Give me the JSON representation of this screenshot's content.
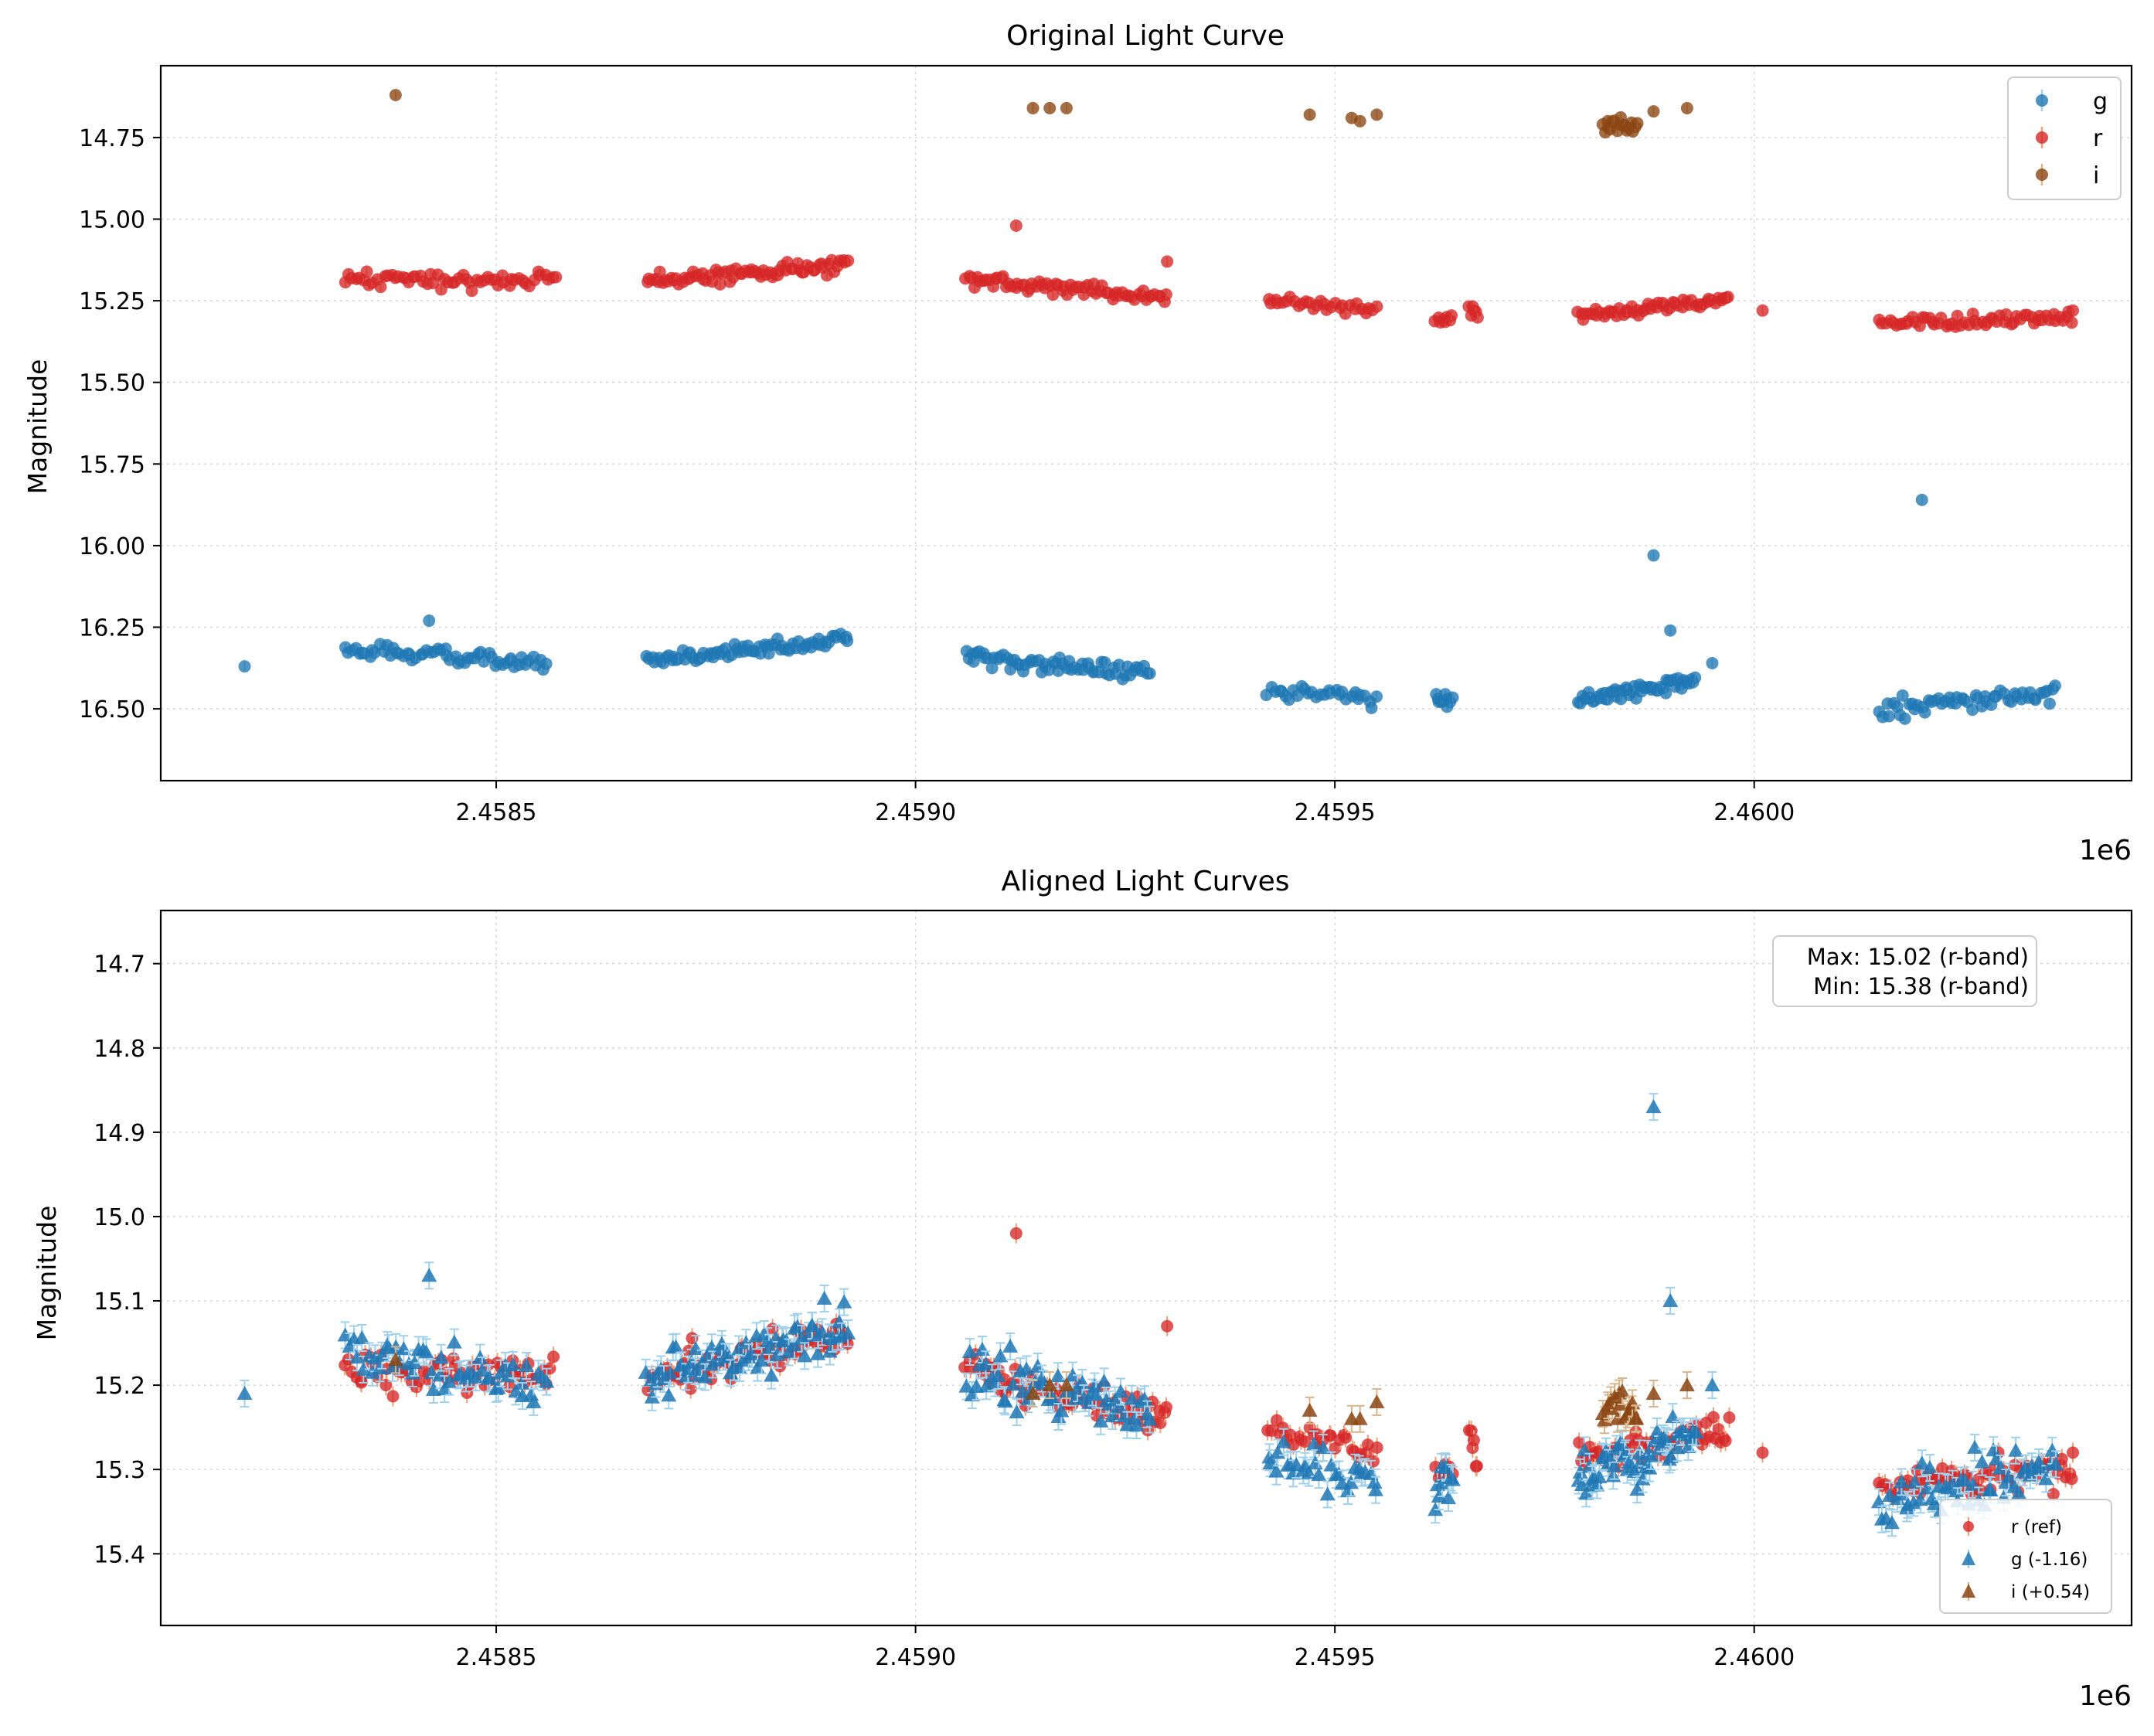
{
  "colors": {
    "g": "#1f77b4",
    "g_err": "#9fd0ec",
    "r": "#d62728",
    "r_err": "#f0a07a",
    "i": "#8b4513",
    "i_err": "#d8b58c",
    "grid": "#d9d9d9"
  },
  "chart_data": [
    {
      "type": "scatter",
      "title": "Original Light Curve",
      "xlabel": "",
      "ylabel": "Magnitude",
      "x_offset_label": "1e6",
      "xlim": [
        2.4581,
        2.46045
      ],
      "ylim": [
        16.72,
        14.53
      ],
      "y_inverted": true,
      "grid": true,
      "x_ticks": [
        2.4585,
        2.459,
        2.4595,
        2.46
      ],
      "x_tick_labels": [
        "2.4585",
        "2.4590",
        "2.4595",
        "2.4600"
      ],
      "y_ticks": [
        14.75,
        15.0,
        15.25,
        15.5,
        15.75,
        16.0,
        16.25,
        16.5
      ],
      "y_tick_labels": [
        "14.75",
        "15.00",
        "15.25",
        "15.50",
        "15.75",
        "16.00",
        "16.25",
        "16.50"
      ],
      "legend": {
        "placement": "top-right",
        "entries": [
          "g",
          "r",
          "i"
        ]
      },
      "series": [
        {
          "name": "r",
          "marker": "circle",
          "segments": [
            {
              "x0": 2.45832,
              "x1": 2.45857,
              "m0": 15.18,
              "m1": 15.19,
              "spread": 0.05,
              "n": 60
            },
            {
              "x0": 2.45868,
              "x1": 2.45892,
              "m0": 15.19,
              "m1": 15.14,
              "spread": 0.05,
              "n": 75
            },
            {
              "x0": 2.45906,
              "x1": 2.4593,
              "m0": 15.18,
              "m1": 15.24,
              "spread": 0.05,
              "n": 70
            },
            {
              "x0": 2.45942,
              "x1": 2.45955,
              "m0": 15.25,
              "m1": 15.28,
              "spread": 0.04,
              "n": 30
            },
            {
              "x0": 2.45962,
              "x1": 2.45964,
              "m0": 15.3,
              "m1": 15.3,
              "spread": 0.04,
              "n": 8
            },
            {
              "x0": 2.45966,
              "x1": 2.45967,
              "m0": 15.27,
              "m1": 15.29,
              "spread": 0.05,
              "n": 6
            },
            {
              "x0": 2.45979,
              "x1": 2.45997,
              "m0": 15.29,
              "m1": 15.25,
              "spread": 0.04,
              "n": 55
            },
            {
              "x0": 2.46015,
              "x1": 2.46038,
              "m0": 15.32,
              "m1": 15.3,
              "spread": 0.05,
              "n": 60
            }
          ],
          "points": [
            {
              "x": 2.45912,
              "y": 15.02
            },
            {
              "x": 2.4593,
              "y": 15.13
            },
            {
              "x": 2.46001,
              "y": 15.28
            },
            {
              "x": 2.46038,
              "y": 15.28
            }
          ]
        },
        {
          "name": "g",
          "marker": "circle",
          "segments": [
            {
              "x0": 2.45832,
              "x1": 2.45856,
              "m0": 16.32,
              "m1": 16.36,
              "spread": 0.05,
              "n": 60
            },
            {
              "x0": 2.45868,
              "x1": 2.45892,
              "m0": 16.35,
              "m1": 16.29,
              "spread": 0.05,
              "n": 75
            },
            {
              "x0": 2.45906,
              "x1": 2.45928,
              "m0": 16.34,
              "m1": 16.39,
              "spread": 0.06,
              "n": 65
            },
            {
              "x0": 2.45942,
              "x1": 2.45955,
              "m0": 16.45,
              "m1": 16.47,
              "spread": 0.05,
              "n": 30
            },
            {
              "x0": 2.45962,
              "x1": 2.45964,
              "m0": 16.48,
              "m1": 16.47,
              "spread": 0.07,
              "n": 10
            },
            {
              "x0": 2.45979,
              "x1": 2.45993,
              "m0": 16.47,
              "m1": 16.42,
              "spread": 0.05,
              "n": 55
            },
            {
              "x0": 2.46015,
              "x1": 2.46036,
              "m0": 16.5,
              "m1": 16.45,
              "spread": 0.07,
              "n": 55
            }
          ],
          "points": [
            {
              "x": 2.4582,
              "y": 16.37
            },
            {
              "x": 2.45842,
              "y": 16.23
            },
            {
              "x": 2.45988,
              "y": 16.03
            },
            {
              "x": 2.4599,
              "y": 16.26
            },
            {
              "x": 2.45995,
              "y": 16.36
            },
            {
              "x": 2.4602,
              "y": 15.86
            }
          ]
        },
        {
          "name": "i",
          "marker": "circle",
          "segments": [
            {
              "x0": 2.45982,
              "x1": 2.45986,
              "m0": 14.7,
              "m1": 14.72,
              "spread": 0.06,
              "n": 18
            }
          ],
          "points": [
            {
              "x": 2.45838,
              "y": 14.62
            },
            {
              "x": 2.45914,
              "y": 14.66
            },
            {
              "x": 2.45916,
              "y": 14.66
            },
            {
              "x": 2.45918,
              "y": 14.66
            },
            {
              "x": 2.45947,
              "y": 14.68
            },
            {
              "x": 2.45952,
              "y": 14.69
            },
            {
              "x": 2.45953,
              "y": 14.7
            },
            {
              "x": 2.45955,
              "y": 14.68
            },
            {
              "x": 2.45988,
              "y": 14.67
            },
            {
              "x": 2.45992,
              "y": 14.66
            }
          ]
        }
      ]
    },
    {
      "type": "scatter",
      "title": "Aligned Light Curves",
      "xlabel": "",
      "ylabel": "Magnitude",
      "x_offset_label": "1e6",
      "xlim": [
        2.4581,
        2.46045
      ],
      "ylim": [
        15.485,
        14.637
      ],
      "y_inverted": true,
      "grid": true,
      "x_ticks": [
        2.4585,
        2.459,
        2.4595,
        2.46
      ],
      "x_tick_labels": [
        "2.4585",
        "2.4590",
        "2.4595",
        "2.4600"
      ],
      "y_ticks": [
        14.7,
        14.8,
        14.9,
        15.0,
        15.1,
        15.2,
        15.3,
        15.4
      ],
      "y_tick_labels": [
        "14.7",
        "14.8",
        "14.9",
        "15.0",
        "15.1",
        "15.2",
        "15.3",
        "15.4"
      ],
      "annotation": [
        "Max: 15.02 (r-band)",
        "Min: 15.38 (r-band)"
      ],
      "legend": {
        "placement": "bottom-right",
        "entries": [
          "r (ref)",
          "g (-1.16)",
          "i (+0.54)"
        ]
      },
      "series": [
        {
          "name": "r (ref)",
          "marker": "circle",
          "segments": [
            {
              "x0": 2.45832,
              "x1": 2.45857,
              "m0": 15.18,
              "m1": 15.19,
              "spread": 0.05,
              "n": 60
            },
            {
              "x0": 2.45868,
              "x1": 2.45892,
              "m0": 15.19,
              "m1": 15.14,
              "spread": 0.05,
              "n": 75
            },
            {
              "x0": 2.45906,
              "x1": 2.4593,
              "m0": 15.18,
              "m1": 15.24,
              "spread": 0.05,
              "n": 70
            },
            {
              "x0": 2.45942,
              "x1": 2.45955,
              "m0": 15.25,
              "m1": 15.28,
              "spread": 0.04,
              "n": 30
            },
            {
              "x0": 2.45962,
              "x1": 2.45964,
              "m0": 15.3,
              "m1": 15.3,
              "spread": 0.04,
              "n": 8
            },
            {
              "x0": 2.45966,
              "x1": 2.45967,
              "m0": 15.27,
              "m1": 15.29,
              "spread": 0.05,
              "n": 6
            },
            {
              "x0": 2.45979,
              "x1": 2.45997,
              "m0": 15.29,
              "m1": 15.25,
              "spread": 0.04,
              "n": 55
            },
            {
              "x0": 2.46015,
              "x1": 2.46038,
              "m0": 15.32,
              "m1": 15.3,
              "spread": 0.05,
              "n": 60
            }
          ],
          "points": [
            {
              "x": 2.45912,
              "y": 15.02
            },
            {
              "x": 2.4593,
              "y": 15.13
            },
            {
              "x": 2.46001,
              "y": 15.28
            },
            {
              "x": 2.46038,
              "y": 15.28
            }
          ]
        },
        {
          "name": "g (-1.16)",
          "marker": "triangle",
          "segments": [
            {
              "x0": 2.45832,
              "x1": 2.45856,
              "m0": 15.16,
              "m1": 15.2,
              "spread": 0.06,
              "n": 55
            },
            {
              "x0": 2.45868,
              "x1": 2.45892,
              "m0": 15.19,
              "m1": 15.13,
              "spread": 0.06,
              "n": 70
            },
            {
              "x0": 2.45906,
              "x1": 2.45928,
              "m0": 15.18,
              "m1": 15.23,
              "spread": 0.07,
              "n": 60
            },
            {
              "x0": 2.45942,
              "x1": 2.45955,
              "m0": 15.29,
              "m1": 15.31,
              "spread": 0.06,
              "n": 30
            },
            {
              "x0": 2.45962,
              "x1": 2.45964,
              "m0": 15.32,
              "m1": 15.31,
              "spread": 0.08,
              "n": 10
            },
            {
              "x0": 2.45979,
              "x1": 2.45993,
              "m0": 15.31,
              "m1": 15.26,
              "spread": 0.06,
              "n": 55
            },
            {
              "x0": 2.46015,
              "x1": 2.46036,
              "m0": 15.34,
              "m1": 15.29,
              "spread": 0.08,
              "n": 55
            }
          ],
          "points": [
            {
              "x": 2.4582,
              "y": 15.21
            },
            {
              "x": 2.45842,
              "y": 15.07
            },
            {
              "x": 2.45988,
              "y": 14.87
            },
            {
              "x": 2.4599,
              "y": 15.1
            },
            {
              "x": 2.45995,
              "y": 15.2
            }
          ]
        },
        {
          "name": "i (+0.54)",
          "marker": "triangle",
          "segments": [
            {
              "x0": 2.45982,
              "x1": 2.45986,
              "m0": 15.21,
              "m1": 15.23,
              "spread": 0.05,
              "n": 18
            }
          ],
          "points": [
            {
              "x": 2.45838,
              "y": 15.17
            },
            {
              "x": 2.45914,
              "y": 15.21
            },
            {
              "x": 2.45916,
              "y": 15.2
            },
            {
              "x": 2.45918,
              "y": 15.2
            },
            {
              "x": 2.45947,
              "y": 15.23
            },
            {
              "x": 2.45952,
              "y": 15.24
            },
            {
              "x": 2.45953,
              "y": 15.24
            },
            {
              "x": 2.45955,
              "y": 15.22
            },
            {
              "x": 2.45988,
              "y": 15.21
            },
            {
              "x": 2.45992,
              "y": 15.2
            }
          ]
        }
      ]
    }
  ]
}
